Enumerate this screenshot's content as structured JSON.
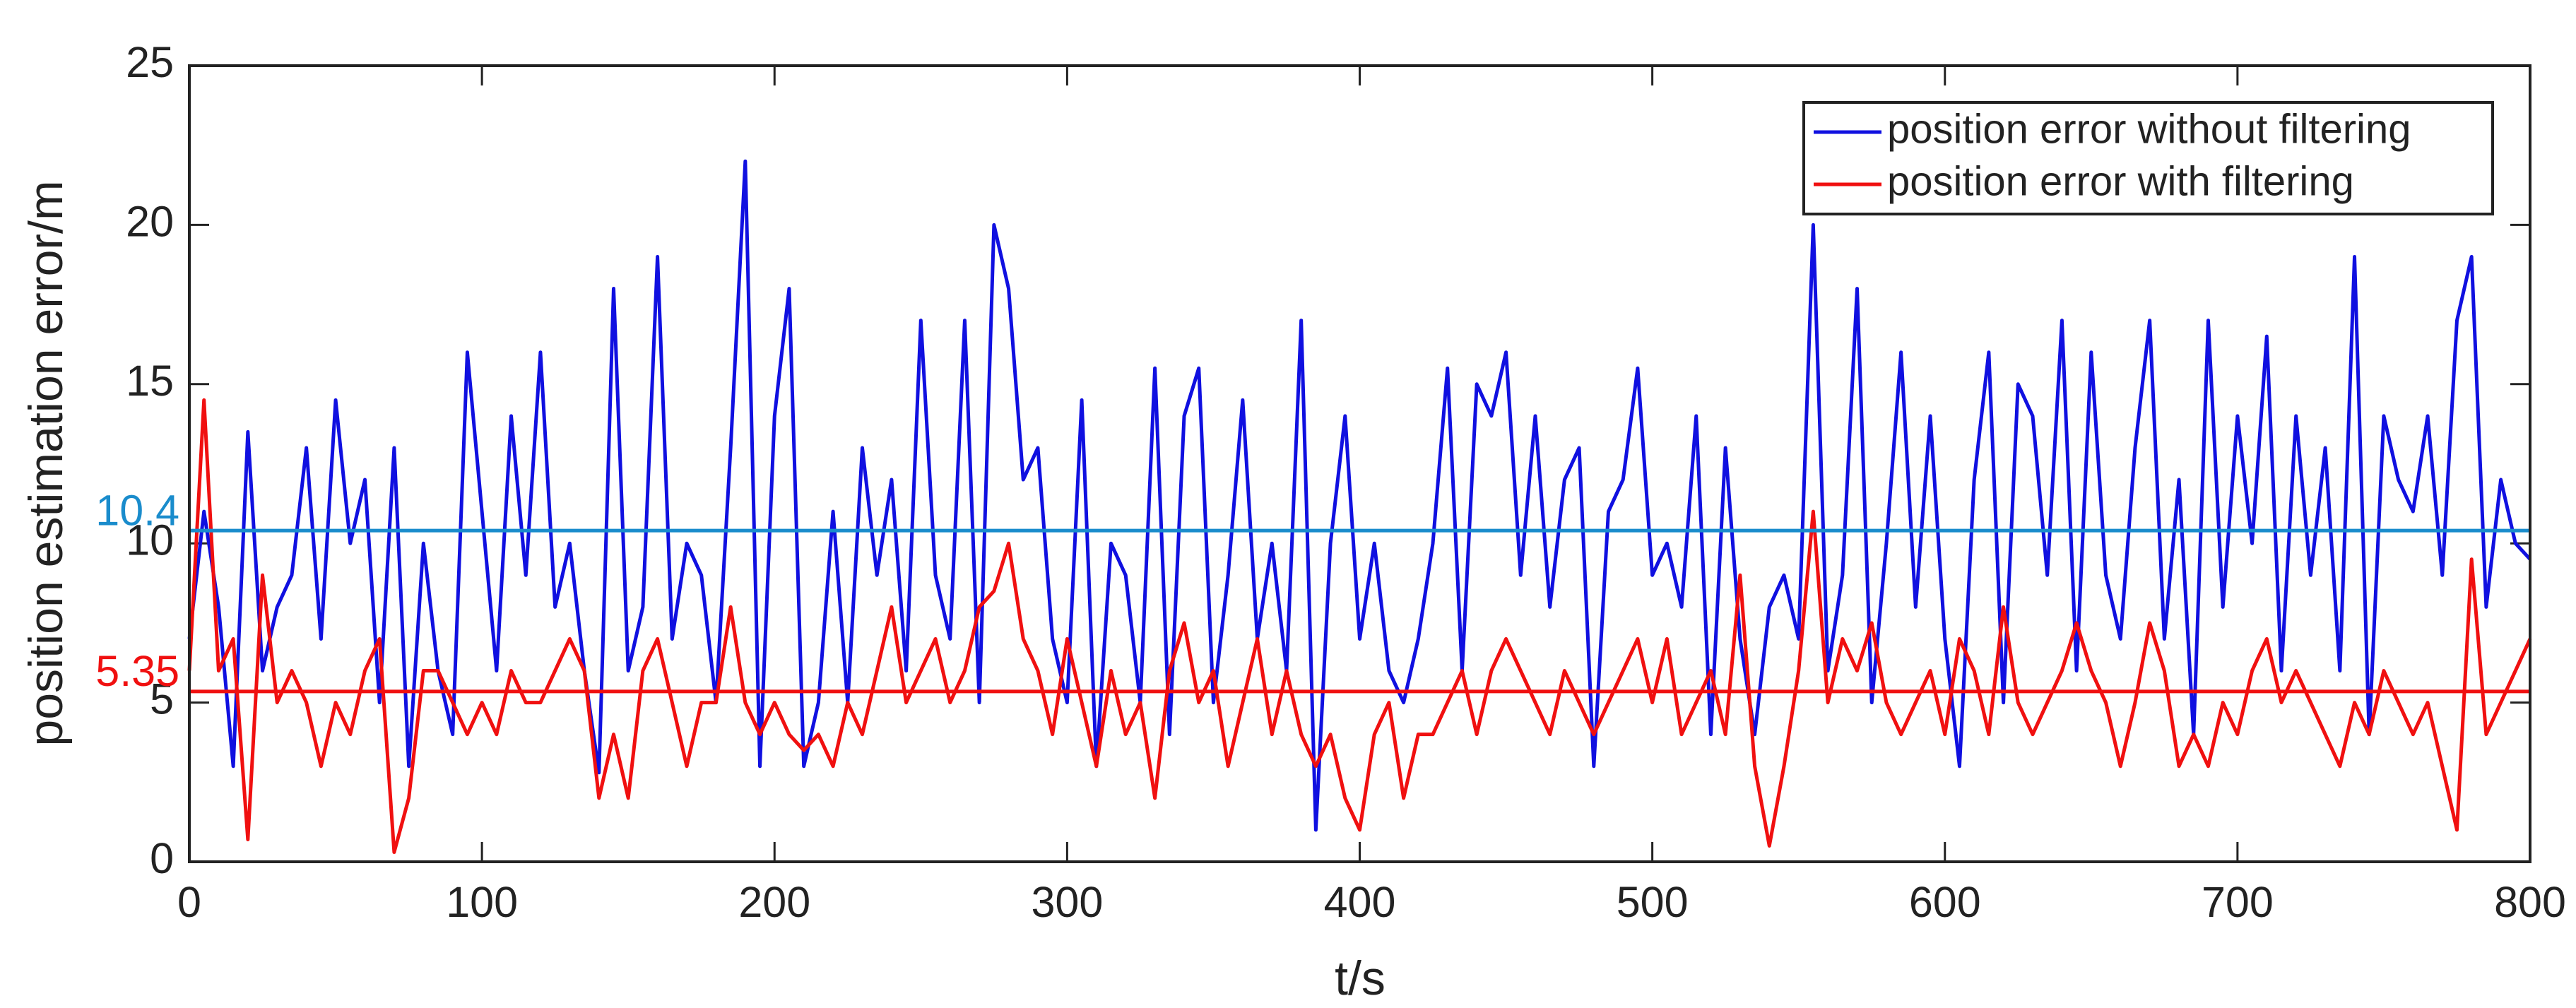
{
  "chart_data": {
    "type": "line",
    "x_label": "t/s",
    "y_label": "position estimation error/m",
    "x": [
      0,
      5,
      10,
      15,
      20,
      25,
      30,
      35,
      40,
      45,
      50,
      55,
      60,
      65,
      70,
      75,
      80,
      85,
      90,
      95,
      100,
      105,
      110,
      115,
      120,
      125,
      130,
      135,
      140,
      145,
      150,
      155,
      160,
      165,
      170,
      175,
      180,
      185,
      190,
      195,
      200,
      205,
      210,
      215,
      220,
      225,
      230,
      235,
      240,
      245,
      250,
      255,
      260,
      265,
      270,
      275,
      280,
      285,
      290,
      295,
      300,
      305,
      310,
      315,
      320,
      325,
      330,
      335,
      340,
      345,
      350,
      355,
      360,
      365,
      370,
      375,
      380,
      385,
      390,
      395,
      400,
      405,
      410,
      415,
      420,
      425,
      430,
      435,
      440,
      445,
      450,
      455,
      460,
      465,
      470,
      475,
      480,
      485,
      490,
      495,
      500,
      505,
      510,
      515,
      520,
      525,
      530,
      535,
      540,
      545,
      550,
      555,
      560,
      565,
      570,
      575,
      580,
      585,
      590,
      595,
      600,
      605,
      610,
      615,
      620,
      625,
      630,
      635,
      640,
      645,
      650,
      655,
      660,
      665,
      670,
      675,
      680,
      685,
      690,
      695,
      700,
      705,
      710,
      715,
      720,
      725,
      730,
      735,
      740,
      745,
      750,
      755,
      760,
      765,
      770,
      775,
      780,
      785,
      790,
      795,
      800
    ],
    "series": [
      {
        "name": "position error without filtering",
        "color": "#1010e0",
        "values": [
          7,
          11,
          8,
          3,
          13.5,
          6,
          8,
          9,
          13,
          7,
          14.5,
          10,
          12,
          5,
          13,
          3,
          10,
          6,
          4,
          16,
          11,
          6,
          14,
          9,
          16,
          8,
          10,
          6,
          2.8,
          18,
          6,
          8,
          19,
          7,
          10,
          9,
          5,
          13,
          22,
          3,
          14,
          18,
          3,
          5,
          11,
          5,
          13,
          9,
          12,
          6,
          17,
          9,
          7,
          17,
          5,
          20,
          18,
          12,
          13,
          7,
          5,
          14.5,
          3,
          10,
          9,
          5,
          15.5,
          4,
          14,
          15.5,
          5,
          9,
          14.5,
          7,
          10,
          6,
          17,
          1,
          10,
          14,
          7,
          10,
          6,
          5,
          7,
          10,
          15.5,
          6,
          15,
          14,
          16,
          9,
          14,
          8,
          12,
          13,
          3,
          11,
          12,
          15.5,
          9,
          10,
          8,
          14,
          4,
          13,
          7,
          4,
          8,
          9,
          7,
          20,
          6,
          9,
          18,
          5,
          10,
          16,
          8,
          14,
          7,
          3,
          12,
          16,
          5,
          15,
          14,
          9,
          17,
          6,
          16,
          9,
          7,
          13,
          17,
          7,
          12,
          4,
          17,
          8,
          14,
          10,
          16.5,
          6,
          14,
          9,
          13,
          6,
          19,
          4,
          14,
          12,
          11,
          14,
          9,
          17,
          19,
          8,
          12,
          10,
          9.5
        ]
      },
      {
        "name": "position error with filtering",
        "color": "#f01010",
        "values": [
          6,
          14.5,
          6,
          7,
          0.7,
          9,
          5,
          6,
          5,
          3,
          5,
          4,
          6,
          7,
          0.3,
          2,
          6,
          6,
          5,
          4,
          5,
          4,
          6,
          5,
          5,
          6,
          7,
          6,
          2,
          4,
          2,
          6,
          7,
          5,
          3,
          5,
          5,
          8,
          5,
          4,
          5,
          4,
          3.5,
          4,
          3,
          5,
          4,
          6,
          8,
          5,
          6,
          7,
          5,
          6,
          8,
          8.5,
          10,
          7,
          6,
          4,
          7,
          5,
          3,
          6,
          4,
          5,
          2,
          6,
          7.5,
          5,
          6,
          3,
          5,
          7,
          4,
          6,
          4,
          3,
          4,
          2,
          1,
          4,
          5,
          2,
          4,
          4,
          5,
          6,
          4,
          6,
          7,
          6,
          5,
          4,
          6,
          5,
          4,
          5,
          6,
          7,
          5,
          7,
          4,
          5,
          6,
          4,
          9,
          3,
          0.5,
          3,
          6,
          11,
          5,
          7,
          6,
          7.5,
          5,
          4,
          5,
          6,
          4,
          7,
          6,
          4,
          8,
          5,
          4,
          5,
          6,
          7.5,
          6,
          5,
          3,
          5,
          7.5,
          6,
          3,
          4,
          3,
          5,
          4,
          6,
          7,
          5,
          6,
          5,
          4,
          3,
          5,
          4,
          6,
          5,
          4,
          5,
          3,
          1,
          9.5,
          4,
          5,
          6,
          7
        ]
      }
    ],
    "reference_lines": [
      {
        "value": 10.4,
        "color": "#1a8ccc"
      },
      {
        "value": 5.35,
        "color": "#f01010"
      }
    ],
    "xlim": [
      0,
      800
    ],
    "xticks": [
      0,
      100,
      200,
      300,
      400,
      500,
      600,
      700,
      800
    ],
    "ylim": [
      0,
      25
    ],
    "yticks": [
      0,
      5,
      10,
      15,
      20,
      25
    ],
    "legend": "upper right"
  }
}
